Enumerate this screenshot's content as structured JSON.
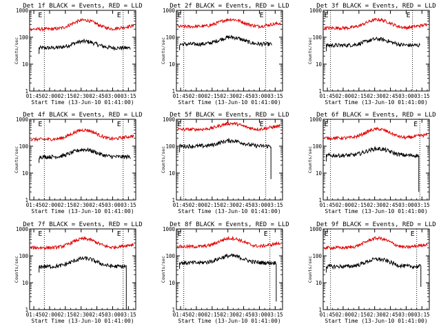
{
  "figure": {
    "background": "#ffffff"
  },
  "chart_data": [
    {
      "type": "line",
      "title": "Det 1f BLACK = Events, RED = LLD",
      "xlabel": "Start Time (13-Jun-10 01:41:00)",
      "ylabel": "Counts/sec",
      "yscale": "log",
      "ylim": [
        1,
        1000
      ],
      "xlim": [
        "01:41",
        "03:22"
      ],
      "x_ticks": [
        "01:45",
        "02:00",
        "02:15",
        "02:30",
        "02:45",
        "03:00",
        "03:15"
      ],
      "y_ticks": [
        "1",
        "10",
        "100",
        "1000"
      ],
      "event_markers": [
        {
          "label": "E",
          "time": "01:55"
        },
        {
          "label": "E",
          "time": "03:10"
        }
      ],
      "series": [
        {
          "name": "Events",
          "color": "#000000",
          "start": "01:50",
          "end": "03:17",
          "base": 40,
          "peak": 70,
          "drop_to": null
        },
        {
          "name": "LLD",
          "color": "#e00000",
          "start": "01:42",
          "end": "03:20",
          "base": 200,
          "peak": 430
        }
      ]
    },
    {
      "type": "line",
      "title": "Det 2f BLACK = Events, RED = LLD",
      "xlabel": "Start Time (13-Jun-10 01:41:00)",
      "ylabel": "Counts/sec",
      "yscale": "log",
      "ylim": [
        1,
        1000
      ],
      "xlim": [
        "01:41",
        "03:22"
      ],
      "x_ticks": [
        "01:45",
        "02:00",
        "02:15",
        "02:30",
        "02:45",
        "03:00",
        "03:15"
      ],
      "y_ticks": [
        "1",
        "10",
        "100",
        "1000"
      ],
      "event_markers": [
        {
          "label": "E",
          "time": "01:48"
        },
        {
          "label": "E",
          "time": "03:06"
        }
      ],
      "series": [
        {
          "name": "Events",
          "color": "#000000",
          "start": "01:44",
          "end": "03:12",
          "base": 55,
          "peak": 100,
          "drop_to": null
        },
        {
          "name": "LLD",
          "color": "#e00000",
          "start": "01:42",
          "end": "03:20",
          "base": 250,
          "peak": 460
        }
      ]
    },
    {
      "type": "line",
      "title": "Det 3f BLACK = Events, RED = LLD",
      "xlabel": "Start Time (13-Jun-10 01:41:00)",
      "ylabel": "Counts/sec",
      "yscale": "log",
      "ylim": [
        1,
        1000
      ],
      "xlim": [
        "01:41",
        "03:22"
      ],
      "x_ticks": [
        "01:45",
        "02:00",
        "02:15",
        "02:30",
        "02:45",
        "03:00",
        "03:15"
      ],
      "y_ticks": [
        "1",
        "10",
        "100",
        "1000"
      ],
      "event_markers": [
        {
          "label": "E",
          "time": "01:48"
        },
        {
          "label": "E",
          "time": "03:06"
        }
      ],
      "series": [
        {
          "name": "Events",
          "color": "#000000",
          "start": "01:44",
          "end": "03:13",
          "base": 50,
          "peak": 85,
          "drop_to": null
        },
        {
          "name": "LLD",
          "color": "#e00000",
          "start": "01:42",
          "end": "03:20",
          "base": 220,
          "peak": 450
        }
      ]
    },
    {
      "type": "line",
      "title": "Det 4f BLACK = Events, RED = LLD",
      "xlabel": "Start Time (13-Jun-10 01:41:00)",
      "ylabel": "Counts/sec",
      "yscale": "log",
      "ylim": [
        1,
        1000
      ],
      "xlim": [
        "01:41",
        "03:22"
      ],
      "x_ticks": [
        "01:45",
        "02:00",
        "02:15",
        "02:30",
        "02:45",
        "03:00",
        "03:15"
      ],
      "y_ticks": [
        "1",
        "10",
        "100",
        "1000"
      ],
      "event_markers": [
        {
          "label": "E",
          "time": "01:55"
        },
        {
          "label": "E",
          "time": "03:10"
        }
      ],
      "series": [
        {
          "name": "Events",
          "color": "#000000",
          "start": "01:50",
          "end": "03:17",
          "base": 40,
          "peak": 75,
          "drop_to": null
        },
        {
          "name": "LLD",
          "color": "#e00000",
          "start": "01:42",
          "end": "03:20",
          "base": 180,
          "peak": 400
        }
      ]
    },
    {
      "type": "line",
      "title": "Det 5f BLACK = Events, RED = LLD",
      "xlabel": "Start Time (13-Jun-10 01:41:00)",
      "ylabel": "Counts/sec",
      "yscale": "log",
      "ylim": [
        1,
        1000
      ],
      "xlim": [
        "01:41",
        "03:22"
      ],
      "x_ticks": [
        "01:45",
        "02:00",
        "02:15",
        "02:30",
        "02:45",
        "03:00",
        "03:15"
      ],
      "y_ticks": [
        "1",
        "10",
        "100",
        "1000"
      ],
      "event_markers": [
        {
          "label": "E",
          "time": "01:48"
        },
        {
          "label": "E",
          "time": "03:06"
        }
      ],
      "series": [
        {
          "name": "Events",
          "color": "#000000",
          "start": "01:44",
          "end": "03:11",
          "base": 100,
          "peak": 160,
          "drop_to": 6
        },
        {
          "name": "LLD",
          "color": "#e00000",
          "start": "01:42",
          "end": "03:20",
          "base": 420,
          "peak": 700
        }
      ]
    },
    {
      "type": "line",
      "title": "Det 6f BLACK = Events, RED = LLD",
      "xlabel": "Start Time (13-Jun-10 01:41:00)",
      "ylabel": "Counts/sec",
      "yscale": "log",
      "ylim": [
        1,
        1000
      ],
      "xlim": [
        "01:41",
        "03:22"
      ],
      "x_ticks": [
        "01:45",
        "02:00",
        "02:15",
        "02:30",
        "02:45",
        "03:00",
        "03:15"
      ],
      "y_ticks": [
        "1",
        "10",
        "100",
        "1000"
      ],
      "event_markers": [
        {
          "label": "E",
          "time": "01:48"
        },
        {
          "label": "E",
          "time": "03:13"
        }
      ],
      "series": [
        {
          "name": "Events",
          "color": "#000000",
          "start": "01:44",
          "end": "03:12",
          "base": 45,
          "peak": 80,
          "drop_to": 2
        },
        {
          "name": "LLD",
          "color": "#e00000",
          "start": "01:42",
          "end": "03:20",
          "base": 200,
          "peak": 430
        }
      ]
    },
    {
      "type": "line",
      "title": "Det 7f BLACK = Events, RED = LLD",
      "xlabel": "Start Time (13-Jun-10 01:41:00)",
      "ylabel": "Counts/sec",
      "yscale": "log",
      "ylim": [
        1,
        1000
      ],
      "xlim": [
        "01:41",
        "03:22"
      ],
      "x_ticks": [
        "01:45",
        "02:00",
        "02:15",
        "02:30",
        "02:45",
        "03:00",
        "03:15"
      ],
      "y_ticks": [
        "1",
        "10",
        "100",
        "1000"
      ],
      "event_markers": [
        {
          "label": "E",
          "time": "01:55"
        },
        {
          "label": "E",
          "time": "03:10"
        }
      ],
      "series": [
        {
          "name": "Events",
          "color": "#000000",
          "start": "01:50",
          "end": "03:13",
          "base": 40,
          "peak": 80,
          "drop_to": 1
        },
        {
          "name": "LLD",
          "color": "#e00000",
          "start": "01:42",
          "end": "03:20",
          "base": 200,
          "peak": 430
        }
      ]
    },
    {
      "type": "line",
      "title": "Det 8f BLACK = Events, RED = LLD",
      "xlabel": "Start Time (13-Jun-10 01:41:00)",
      "ylabel": "Counts/sec",
      "yscale": "log",
      "ylim": [
        1,
        1000
      ],
      "xlim": [
        "01:41",
        "03:22"
      ],
      "x_ticks": [
        "01:45",
        "02:00",
        "02:15",
        "02:30",
        "02:45",
        "03:00",
        "03:15"
      ],
      "y_ticks": [
        "1",
        "10",
        "100",
        "1000"
      ],
      "event_markers": [
        {
          "label": "E",
          "time": "01:48"
        },
        {
          "label": "E",
          "time": "03:10"
        }
      ],
      "series": [
        {
          "name": "Events",
          "color": "#000000",
          "start": "01:44",
          "end": "03:16",
          "base": 55,
          "peak": 100,
          "drop_to": 2
        },
        {
          "name": "LLD",
          "color": "#e00000",
          "start": "01:42",
          "end": "03:20",
          "base": 220,
          "peak": 450
        }
      ]
    },
    {
      "type": "line",
      "title": "Det 9f BLACK = Events, RED = LLD",
      "xlabel": "Start Time (13-Jun-10 01:41:00)",
      "ylabel": "Counts/sec",
      "yscale": "log",
      "ylim": [
        1,
        1000
      ],
      "xlim": [
        "01:41",
        "03:22"
      ],
      "x_ticks": [
        "01:45",
        "02:00",
        "02:15",
        "02:30",
        "02:45",
        "03:00",
        "03:15"
      ],
      "y_ticks": [
        "1",
        "10",
        "100",
        "1000"
      ],
      "event_markers": [
        {
          "label": "E",
          "time": "01:48"
        },
        {
          "label": "E",
          "time": "03:10"
        }
      ],
      "series": [
        {
          "name": "Events",
          "color": "#000000",
          "start": "01:44",
          "end": "03:14",
          "base": 40,
          "peak": 75,
          "drop_to": 7
        },
        {
          "name": "LLD",
          "color": "#e00000",
          "start": "01:42",
          "end": "03:20",
          "base": 200,
          "peak": 450
        }
      ]
    }
  ]
}
